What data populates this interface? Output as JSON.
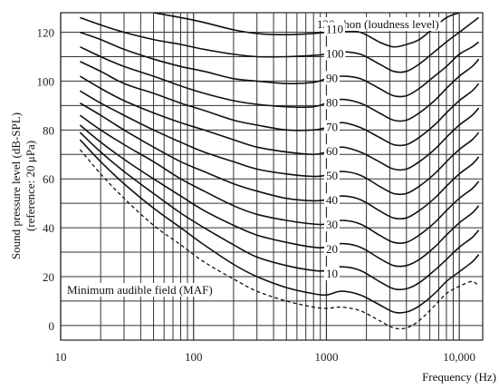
{
  "chart_data": {
    "type": "line",
    "xlabel": "Frequency (Hz)",
    "ylabel": "Sound pressure level (dB-SPL)",
    "ylabel_sub": "(reference: 20 μPa)",
    "xscale": "log",
    "xlim": [
      10,
      15000
    ],
    "ylim": [
      -6,
      128
    ],
    "x_ticks": [
      10,
      100,
      1000,
      10000
    ],
    "x_tick_labels": [
      "10",
      "100",
      "1000",
      "10,000"
    ],
    "y_ticks": [
      0,
      20,
      40,
      60,
      80,
      100,
      120
    ],
    "y_tick_labels": [
      "0",
      "20",
      "40",
      "60",
      "80",
      "100",
      "120"
    ],
    "grid": true,
    "x": [
      14,
      20,
      30,
      50,
      80,
      120,
      200,
      300,
      500,
      800,
      1000,
      1300,
      1800,
      2500,
      3200,
      4000,
      5000,
      6500,
      8000,
      10000,
      12500,
      14000
    ],
    "series": [
      {
        "name": "120 phon (loudness level)",
        "label": "120 phon (loudness level)",
        "values": [
          null,
          null,
          null,
          128,
          126,
          124,
          121,
          119.5,
          119,
          119.5,
          120,
          120.5,
          120,
          116,
          114,
          115,
          117,
          122,
          126,
          128,
          null,
          null
        ]
      },
      {
        "name": "110",
        "label": "110",
        "values": [
          126,
          123,
          120,
          117,
          115,
          113,
          111,
          110,
          110,
          110.5,
          111,
          112,
          111,
          107,
          104,
          104,
          107,
          112,
          116,
          120,
          124,
          126
        ]
      },
      {
        "name": "100",
        "label": "100",
        "values": [
          120,
          117,
          113,
          109,
          106,
          104,
          101,
          100,
          99,
          99.5,
          101,
          102,
          101,
          97,
          94,
          94,
          97,
          102,
          106,
          111,
          114,
          116
        ]
      },
      {
        "name": "90",
        "label": "90",
        "values": [
          114,
          110,
          106,
          102,
          98,
          95,
          92,
          90.5,
          89.5,
          89.5,
          91,
          92.5,
          91,
          87,
          84,
          84,
          87,
          92,
          97,
          102,
          106,
          109
        ]
      },
      {
        "name": "80",
        "label": "80",
        "values": [
          108,
          104,
          99,
          95,
          91,
          88,
          84,
          82,
          80,
          80,
          81,
          83,
          81,
          77,
          74,
          74,
          77,
          82,
          87,
          92,
          96,
          99
        ]
      },
      {
        "name": "70",
        "label": "70",
        "values": [
          102,
          97,
          92,
          87,
          83,
          80,
          76,
          73,
          71,
          70,
          71,
          73,
          71,
          67,
          64,
          64,
          67,
          72,
          77,
          82,
          86,
          89
        ]
      },
      {
        "name": "60",
        "label": "60",
        "values": [
          96,
          91,
          86,
          80,
          75,
          71,
          67,
          64,
          62,
          61,
          61.5,
          63,
          61.5,
          57,
          54,
          54,
          57,
          62,
          67,
          72,
          76,
          79
        ]
      },
      {
        "name": "50",
        "label": "50",
        "values": [
          91,
          86,
          80,
          73,
          67,
          63,
          58,
          55,
          52,
          51,
          51.5,
          53,
          51.5,
          47,
          44,
          44,
          47,
          52,
          57,
          62,
          66,
          69
        ]
      },
      {
        "name": "40",
        "label": "40",
        "values": [
          86,
          80,
          74,
          67,
          60,
          55,
          49,
          45.5,
          43,
          41.5,
          41.5,
          43,
          41.5,
          37,
          34,
          34,
          37,
          42,
          47,
          52,
          56,
          59
        ]
      },
      {
        "name": "30",
        "label": "30",
        "values": [
          82,
          75,
          68,
          60,
          53,
          47,
          41,
          37,
          34,
          32,
          32,
          33.5,
          32,
          27.5,
          24.5,
          24.5,
          27,
          32,
          37,
          42,
          46,
          49
        ]
      },
      {
        "name": "20",
        "label": "20",
        "values": [
          79,
          71,
          63,
          54,
          46,
          40,
          33,
          28,
          24.5,
          22.5,
          22.5,
          24,
          22.5,
          18,
          15,
          15,
          17.5,
          22.5,
          27,
          32,
          36,
          39
        ]
      },
      {
        "name": "10",
        "label": "10",
        "values": [
          76,
          67,
          58,
          48,
          40,
          33,
          25,
          20,
          15.5,
          13,
          12.5,
          14,
          12.5,
          8.5,
          5.5,
          5.5,
          8,
          13,
          18,
          22,
          26,
          29
        ]
      },
      {
        "name": "Minimum audible field (MAF)",
        "label": "Minimum audible field (MAF)",
        "dashed": true,
        "values": [
          72,
          62,
          52,
          41,
          33,
          26,
          19,
          14,
          10,
          7.5,
          7,
          7.5,
          6,
          2,
          -1,
          -1,
          2,
          8,
          13,
          16,
          18,
          16
        ]
      }
    ],
    "label_positions": {
      "120 phon (loudness level)": "right end, above curve near 3-4 kHz",
      "level labels": "at about 1000 Hz above each curve",
      "Minimum audible field (MAF)": "bottom-left, above dashed curve"
    }
  }
}
